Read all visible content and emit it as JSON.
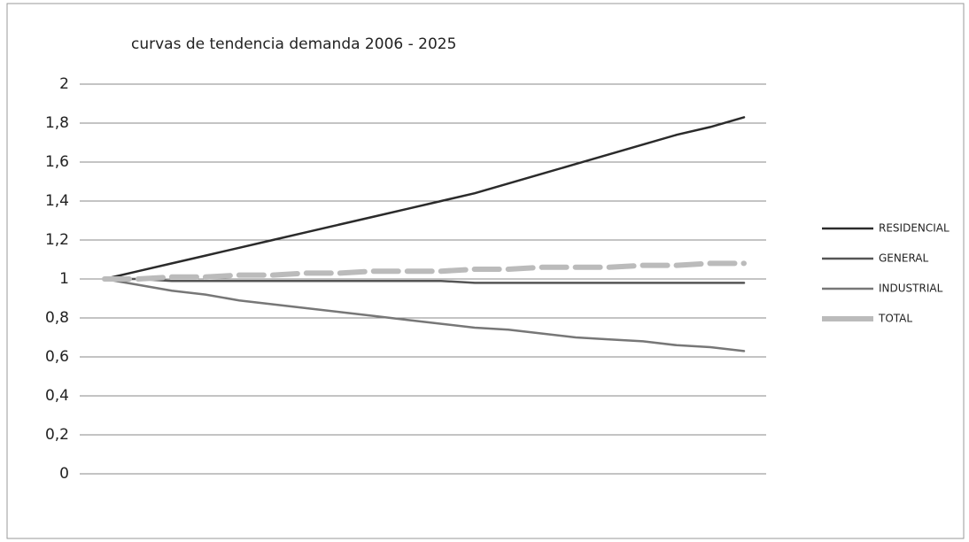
{
  "chart_data": {
    "type": "line",
    "title": "curvas de tendencia demanda   2006 - 2025",
    "categories": [
      null,
      null,
      null,
      null,
      null,
      null,
      null,
      null,
      null,
      null,
      null,
      null,
      null,
      null,
      null,
      null,
      null,
      null,
      null,
      null
    ],
    "series": [
      {
        "name": "RESIDENCIAL",
        "color": "#2b2b2b",
        "values": [
          1.0,
          1.04,
          1.08,
          1.12,
          1.16,
          1.2,
          1.24,
          1.28,
          1.32,
          1.36,
          1.4,
          1.44,
          1.49,
          1.54,
          1.59,
          1.64,
          1.69,
          1.74,
          1.78,
          1.83
        ]
      },
      {
        "name": "GENERAL",
        "color": "#555555",
        "values": [
          1.0,
          1.0,
          0.99,
          0.99,
          0.99,
          0.99,
          0.99,
          0.99,
          0.99,
          0.99,
          0.99,
          0.98,
          0.98,
          0.98,
          0.98,
          0.98,
          0.98,
          0.98,
          0.98,
          0.98
        ]
      },
      {
        "name": "INDUSTRIAL",
        "color": "#777777",
        "values": [
          1.0,
          0.97,
          0.94,
          0.92,
          0.89,
          0.87,
          0.85,
          0.83,
          0.81,
          0.79,
          0.77,
          0.75,
          0.74,
          0.72,
          0.7,
          0.69,
          0.68,
          0.66,
          0.65,
          0.63
        ]
      },
      {
        "name": "TOTAL",
        "color": "#bbbbbb",
        "values": [
          1.0,
          1.0,
          1.01,
          1.01,
          1.02,
          1.02,
          1.03,
          1.03,
          1.04,
          1.04,
          1.04,
          1.05,
          1.05,
          1.06,
          1.06,
          1.06,
          1.07,
          1.07,
          1.08,
          1.08
        ]
      }
    ],
    "ylim": [
      0,
      2
    ],
    "yticks": [
      0,
      {
        "value": 0.2,
        "label": "0,2"
      },
      {
        "value": 0.4,
        "label": "0,4"
      },
      {
        "value": 0.6,
        "label": "0,6"
      },
      {
        "value": 0.8,
        "label": "0,8"
      },
      1,
      {
        "value": 1.2,
        "label": "1,2"
      },
      {
        "value": 1.4,
        "label": "1,4"
      },
      {
        "value": 1.6,
        "label": "1,6"
      },
      {
        "value": 1.8,
        "label": "1,8"
      },
      2
    ],
    "grid": true,
    "legend": "right"
  }
}
